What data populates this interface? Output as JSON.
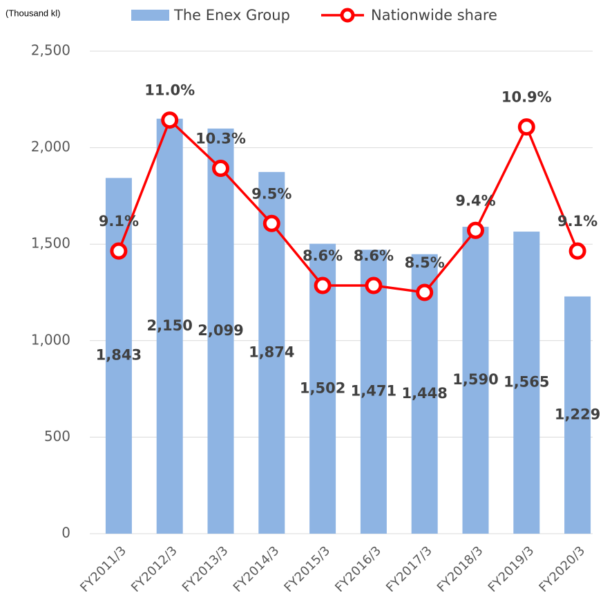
{
  "chart_data": {
    "type": "bar_line",
    "unit_label": "(Thousand kl)",
    "categories": [
      "FY2011/3",
      "FY2012/3",
      "FY2013/3",
      "FY2014/3",
      "FY2015/3",
      "FY2016/3",
      "FY2017/3",
      "FY2018/3",
      "FY2019/3",
      "FY2020/3"
    ],
    "series": [
      {
        "name": "The Enex Group",
        "type": "bar",
        "color": "#8eb4e3",
        "values": [
          1843,
          2150,
          2099,
          1874,
          1502,
          1471,
          1448,
          1590,
          1565,
          1229
        ],
        "value_labels": [
          "1,843",
          "2,150",
          "2,099",
          "1,874",
          "1,502",
          "1,471",
          "1,448",
          "1,590",
          "1,565",
          "1,229"
        ]
      },
      {
        "name": "Nationwide share",
        "type": "line",
        "axis": "y2",
        "color": "#ff0000",
        "values": [
          9.1,
          11.0,
          10.3,
          9.5,
          8.6,
          8.6,
          8.5,
          9.4,
          10.9,
          9.1
        ],
        "value_labels": [
          "9.1%",
          "11.0%",
          "10.3%",
          "9.5%",
          "8.6%",
          "8.6%",
          "8.5%",
          "9.4%",
          "10.9%",
          "9.1%"
        ]
      }
    ],
    "ylim": [
      0,
      2500
    ],
    "yticks": [
      0,
      500,
      {
        "value": 1000,
        "label": "1,000"
      },
      {
        "value": 1500,
        "label": "1,500"
      },
      {
        "value": 2000,
        "label": "2,000"
      },
      {
        "value": 2500,
        "label": "2,500"
      }
    ],
    "y2lim": [
      5,
      12
    ],
    "grid": true
  }
}
